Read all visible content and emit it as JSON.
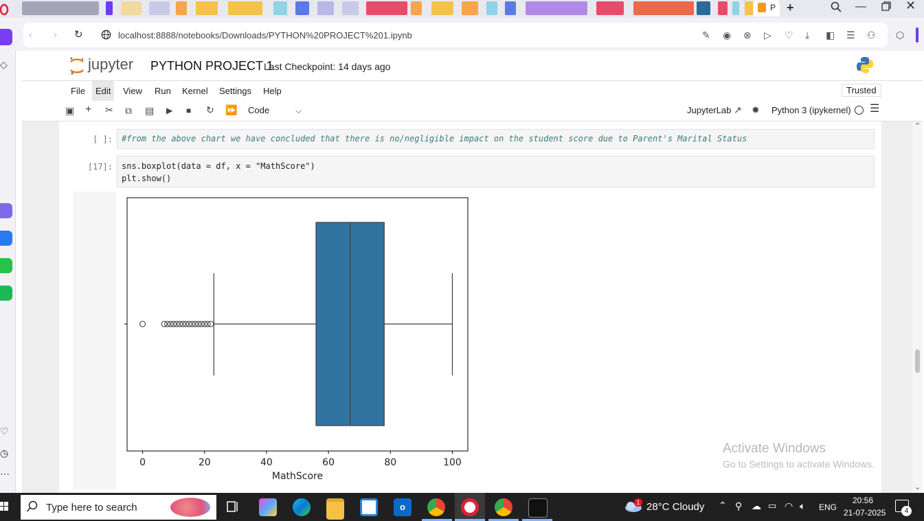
{
  "browser": {
    "active_tab_label": "P",
    "new_tab_icon": "plus-icon",
    "url": "localhost:8888/notebooks/Downloads/PYTHON%20PROJECT%201.ipynb"
  },
  "jupyter": {
    "logo_text": "jupyter",
    "notebook_title": "PYTHON PROJECT 1",
    "checkpoint": "Last Checkpoint: 14 days ago",
    "menus": [
      "File",
      "Edit",
      "View",
      "Run",
      "Kernel",
      "Settings",
      "Help"
    ],
    "trusted": "Trusted",
    "cell_type": "Code",
    "jupyterlab_link": "JupyterLab",
    "kernel_name": "Python 3 (ipykernel)"
  },
  "cells": [
    {
      "prompt": "[ ]:",
      "lines": [
        "#from the above chart we have concluded that there is no/negligible impact on the student score due to Parent's Marital Status"
      ]
    },
    {
      "prompt": "[17]:",
      "lines": [
        "sns.boxplot(data = df, x = \"MathScore\")",
        "plt.show()"
      ]
    }
  ],
  "chart_data": {
    "type": "boxplot",
    "xlabel": "MathScore",
    "xlim": [
      -5,
      105
    ],
    "xticks": [
      0,
      20,
      40,
      60,
      80,
      100
    ],
    "box": {
      "whisker_low": 23,
      "q1": 56,
      "median": 67,
      "q3": 78,
      "whisker_high": 100
    },
    "outliers": [
      0,
      7,
      8,
      9,
      10,
      11,
      12,
      13,
      14,
      15,
      16,
      17,
      18,
      19,
      20,
      21,
      22
    ],
    "color": "#3274a1"
  },
  "watermark": {
    "line1": "Activate Windows",
    "line2": "Go to Settings to activate Windows."
  },
  "taskbar": {
    "search_placeholder": "Type here to search",
    "weather": "28°C  Cloudy",
    "language": "ENG",
    "time": "20:56",
    "date": "21-07-2025",
    "notification_count": "4",
    "weather_badge": "1"
  }
}
